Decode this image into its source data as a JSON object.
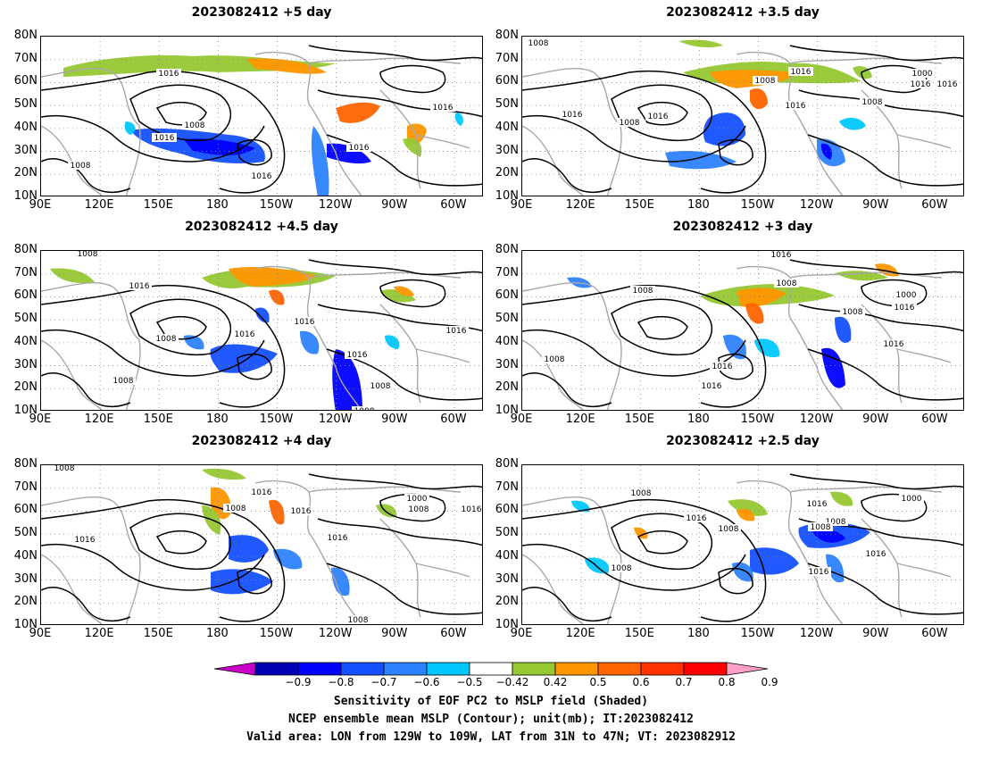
{
  "panels": [
    {
      "title": "2023082412 +5 day"
    },
    {
      "title": "2023082412 +3.5 day"
    },
    {
      "title": "2023082412 +4.5 day"
    },
    {
      "title": "2023082412 +3 day"
    },
    {
      "title": "2023082412 +4 day"
    },
    {
      "title": "2023082412 +2.5 day"
    }
  ],
  "lat_labels": [
    "80N",
    "70N",
    "60N",
    "50N",
    "40N",
    "30N",
    "20N",
    "10N"
  ],
  "lon_labels": [
    "90E",
    "120E",
    "150E",
    "180",
    "150W",
    "120W",
    "90W",
    "60W"
  ],
  "contour_labels": {
    "p0": [
      "1016",
      "1008",
      "1016",
      "1008",
      "1016",
      "1016",
      "1016"
    ],
    "p1": [
      "1008",
      "1016",
      "1016",
      "1008",
      "1016",
      "1008",
      "1016",
      "1016",
      "1000",
      "1016",
      "1008"
    ],
    "p2": [
      "1008",
      "1016",
      "1016",
      "1008",
      "1016",
      "1008",
      "1016",
      "1008",
      "1016",
      "1008"
    ],
    "p3": [
      "1016",
      "1008",
      "1008",
      "1000",
      "1016",
      "1008",
      "1016",
      "1008",
      "1016",
      "1016"
    ],
    "p4": [
      "1008",
      "1016",
      "1008",
      "1016",
      "1016",
      "1000",
      "1008",
      "1008",
      "1016",
      "1016"
    ],
    "p5": [
      "1008",
      "1016",
      "1008",
      "1016",
      "1008",
      "1000",
      "1016",
      "1008",
      "1016",
      "1008"
    ]
  },
  "colorbar": {
    "colors": [
      "#c800c8",
      "#0000b4",
      "#0000ff",
      "#1450ff",
      "#2d82ff",
      "#00c8ff",
      "#ffffff",
      "#96c832",
      "#ff9600",
      "#ff6400",
      "#ff3200",
      "#ff0000",
      "#ffa0c8"
    ],
    "tick_labels": [
      "−0.9",
      "−0.8",
      "−0.7",
      "−0.6",
      "−0.5",
      "−0.42",
      "0.42",
      "0.5",
      "0.6",
      "0.7",
      "0.8",
      "0.9"
    ]
  },
  "caption": {
    "line1": "Sensitivity of EOF PC2 to MSLP field (Shaded)",
    "line2": "NCEP ensemble mean MSLP (Contour); unit(mb); IT:2023082412",
    "line3": "Valid area: LON from 129W to 109W, LAT from 31N to 47N; VT: 2023082912"
  }
}
